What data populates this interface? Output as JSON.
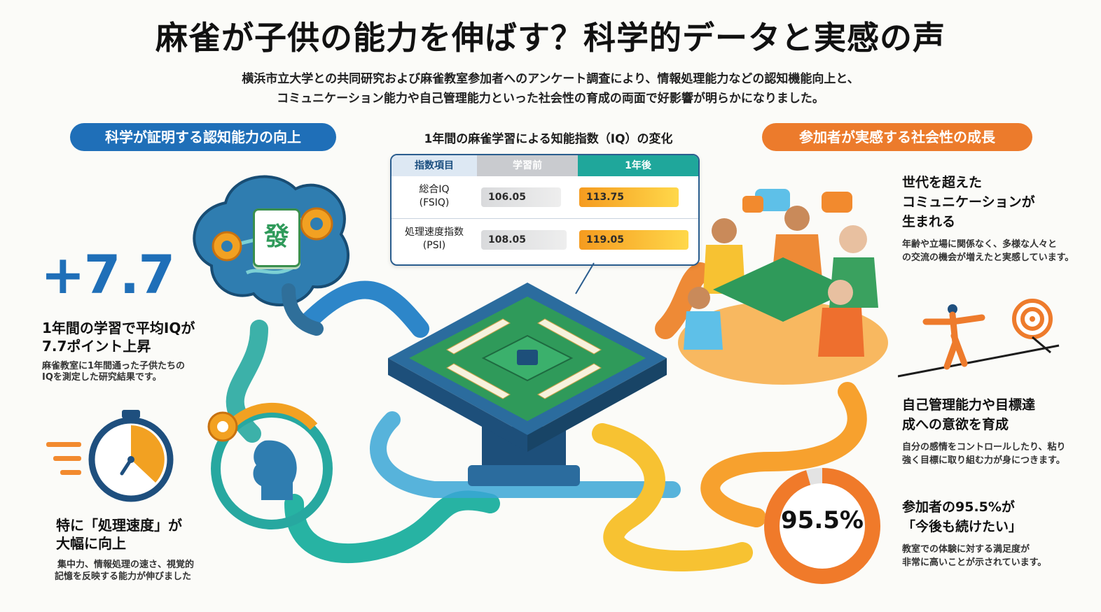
{
  "title": "麻雀が子供の能力を伸ばす？科学的データと実感の声",
  "intro": {
    "line1": "横浜市立大学との共同研究および麻雀教室参加者へのアンケート調査により、情報処理能力などの認知機能向上と、",
    "line2": "コミュニケーション能力や自己管理能力といった社会性の育成の両面で好影響が明らかになりました。"
  },
  "left_section": {
    "pill": "科学が証明する認知能力の向上",
    "big_number": "+7.7",
    "iq_heading_1": "1年間の学習で平均IQが",
    "iq_heading_2": "7.7ポイント上昇",
    "iq_sub_1": "麻雀教室に1年間通った子供たちの",
    "iq_sub_2": "IQを測定した研究結果です。",
    "speed_heading_1": "特に「処理速度」が",
    "speed_heading_2": "大幅に向上",
    "speed_sub_1": "集中力、情報処理の速さ、視覚的",
    "speed_sub_2": "記憶を反映する能力が伸びました",
    "tile_char": "發"
  },
  "table": {
    "title": "1年間の麻雀学習による知能指数（IQ）の変化",
    "headers": [
      "指数項目",
      "学習前",
      "1年後"
    ],
    "rows": [
      {
        "label_1": "総合IQ",
        "label_2": "(FSIQ)",
        "before": "106.05",
        "after": "113.75"
      },
      {
        "label_1": "処理速度指数",
        "label_2": "(PSI)",
        "before": "108.05",
        "after": "119.05"
      }
    ]
  },
  "right_section": {
    "pill": "参加者が実感する社会性の成長",
    "comm_heading_1": "世代を超えた",
    "comm_heading_2": "コミュニケーションが",
    "comm_heading_3": "生まれる",
    "comm_sub_1": "年齢や立場に関係なく、多様な人々と",
    "comm_sub_2": "の交流の機会が増えたと実感しています。",
    "self_heading_1": "自己管理能力や目標達",
    "self_heading_2": "成への意欲を育成",
    "self_sub_1": "自分の感情をコントロールしたり、粘り",
    "self_sub_2": "強く目標に取り組む力が身につきます。",
    "sat_heading_1": "参加者の95.5%が",
    "sat_heading_2": "「今後も続けたい」",
    "sat_sub_1": "教室での体験に対する満足度が",
    "sat_sub_2": "非常に高いことが示されています。",
    "percent_label": "95.5%",
    "percent_value": 95.5
  },
  "colors": {
    "blue": "#1f6fb8",
    "orange": "#ec7b2c",
    "teal": "#27a8a0",
    "yellow": "#f7c232",
    "green": "#2f9a5a"
  }
}
